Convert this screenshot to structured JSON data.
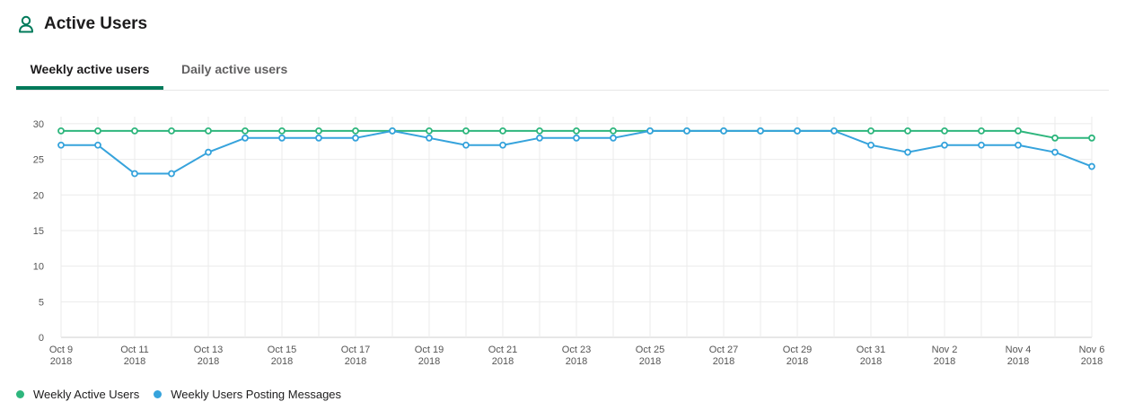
{
  "header": {
    "title": "Active Users",
    "icon": "user-icon",
    "icon_color": "#007a5a"
  },
  "tabs": [
    {
      "label": "Weekly active users",
      "active": true
    },
    {
      "label": "Daily active users",
      "active": false
    }
  ],
  "colors": {
    "accent": "#007a5a",
    "series_green": "#2eb67d",
    "series_blue": "#36a3dc"
  },
  "chart_data": {
    "type": "line",
    "x": [
      "Oct 9 2018",
      "Oct 10 2018",
      "Oct 11 2018",
      "Oct 12 2018",
      "Oct 13 2018",
      "Oct 14 2018",
      "Oct 15 2018",
      "Oct 16 2018",
      "Oct 17 2018",
      "Oct 18 2018",
      "Oct 19 2018",
      "Oct 20 2018",
      "Oct 21 2018",
      "Oct 22 2018",
      "Oct 23 2018",
      "Oct 24 2018",
      "Oct 25 2018",
      "Oct 26 2018",
      "Oct 27 2018",
      "Oct 28 2018",
      "Oct 29 2018",
      "Oct 30 2018",
      "Oct 31 2018",
      "Nov 1 2018",
      "Nov 2 2018",
      "Nov 3 2018",
      "Nov 4 2018",
      "Nov 5 2018",
      "Nov 6 2018"
    ],
    "x_tick_labels": [
      {
        "index": 0,
        "line1": "Oct 9",
        "line2": "2018"
      },
      {
        "index": 2,
        "line1": "Oct 11",
        "line2": "2018"
      },
      {
        "index": 4,
        "line1": "Oct 13",
        "line2": "2018"
      },
      {
        "index": 6,
        "line1": "Oct 15",
        "line2": "2018"
      },
      {
        "index": 8,
        "line1": "Oct 17",
        "line2": "2018"
      },
      {
        "index": 10,
        "line1": "Oct 19",
        "line2": "2018"
      },
      {
        "index": 12,
        "line1": "Oct 21",
        "line2": "2018"
      },
      {
        "index": 14,
        "line1": "Oct 23",
        "line2": "2018"
      },
      {
        "index": 16,
        "line1": "Oct 25",
        "line2": "2018"
      },
      {
        "index": 18,
        "line1": "Oct 27",
        "line2": "2018"
      },
      {
        "index": 20,
        "line1": "Oct 29",
        "line2": "2018"
      },
      {
        "index": 22,
        "line1": "Oct 31",
        "line2": "2018"
      },
      {
        "index": 24,
        "line1": "Nov 2",
        "line2": "2018"
      },
      {
        "index": 26,
        "line1": "Nov 4",
        "line2": "2018"
      },
      {
        "index": 28,
        "line1": "Nov 6",
        "line2": "2018"
      }
    ],
    "y_ticks": [
      0,
      5,
      10,
      15,
      20,
      25,
      30
    ],
    "ylim": [
      0,
      31
    ],
    "grid": true,
    "legend_position": "bottom-left",
    "series": [
      {
        "name": "Weekly Active Users",
        "color": "#2eb67d",
        "values": [
          29,
          29,
          29,
          29,
          29,
          29,
          29,
          29,
          29,
          29,
          29,
          29,
          29,
          29,
          29,
          29,
          29,
          29,
          29,
          29,
          29,
          29,
          29,
          29,
          29,
          29,
          29,
          28,
          28
        ]
      },
      {
        "name": "Weekly Users Posting Messages",
        "color": "#36a3dc",
        "values": [
          27,
          27,
          23,
          23,
          26,
          28,
          28,
          28,
          28,
          29,
          28,
          27,
          27,
          28,
          28,
          28,
          29,
          29,
          29,
          29,
          29,
          29,
          27,
          26,
          27,
          27,
          27,
          26,
          24
        ]
      }
    ]
  }
}
